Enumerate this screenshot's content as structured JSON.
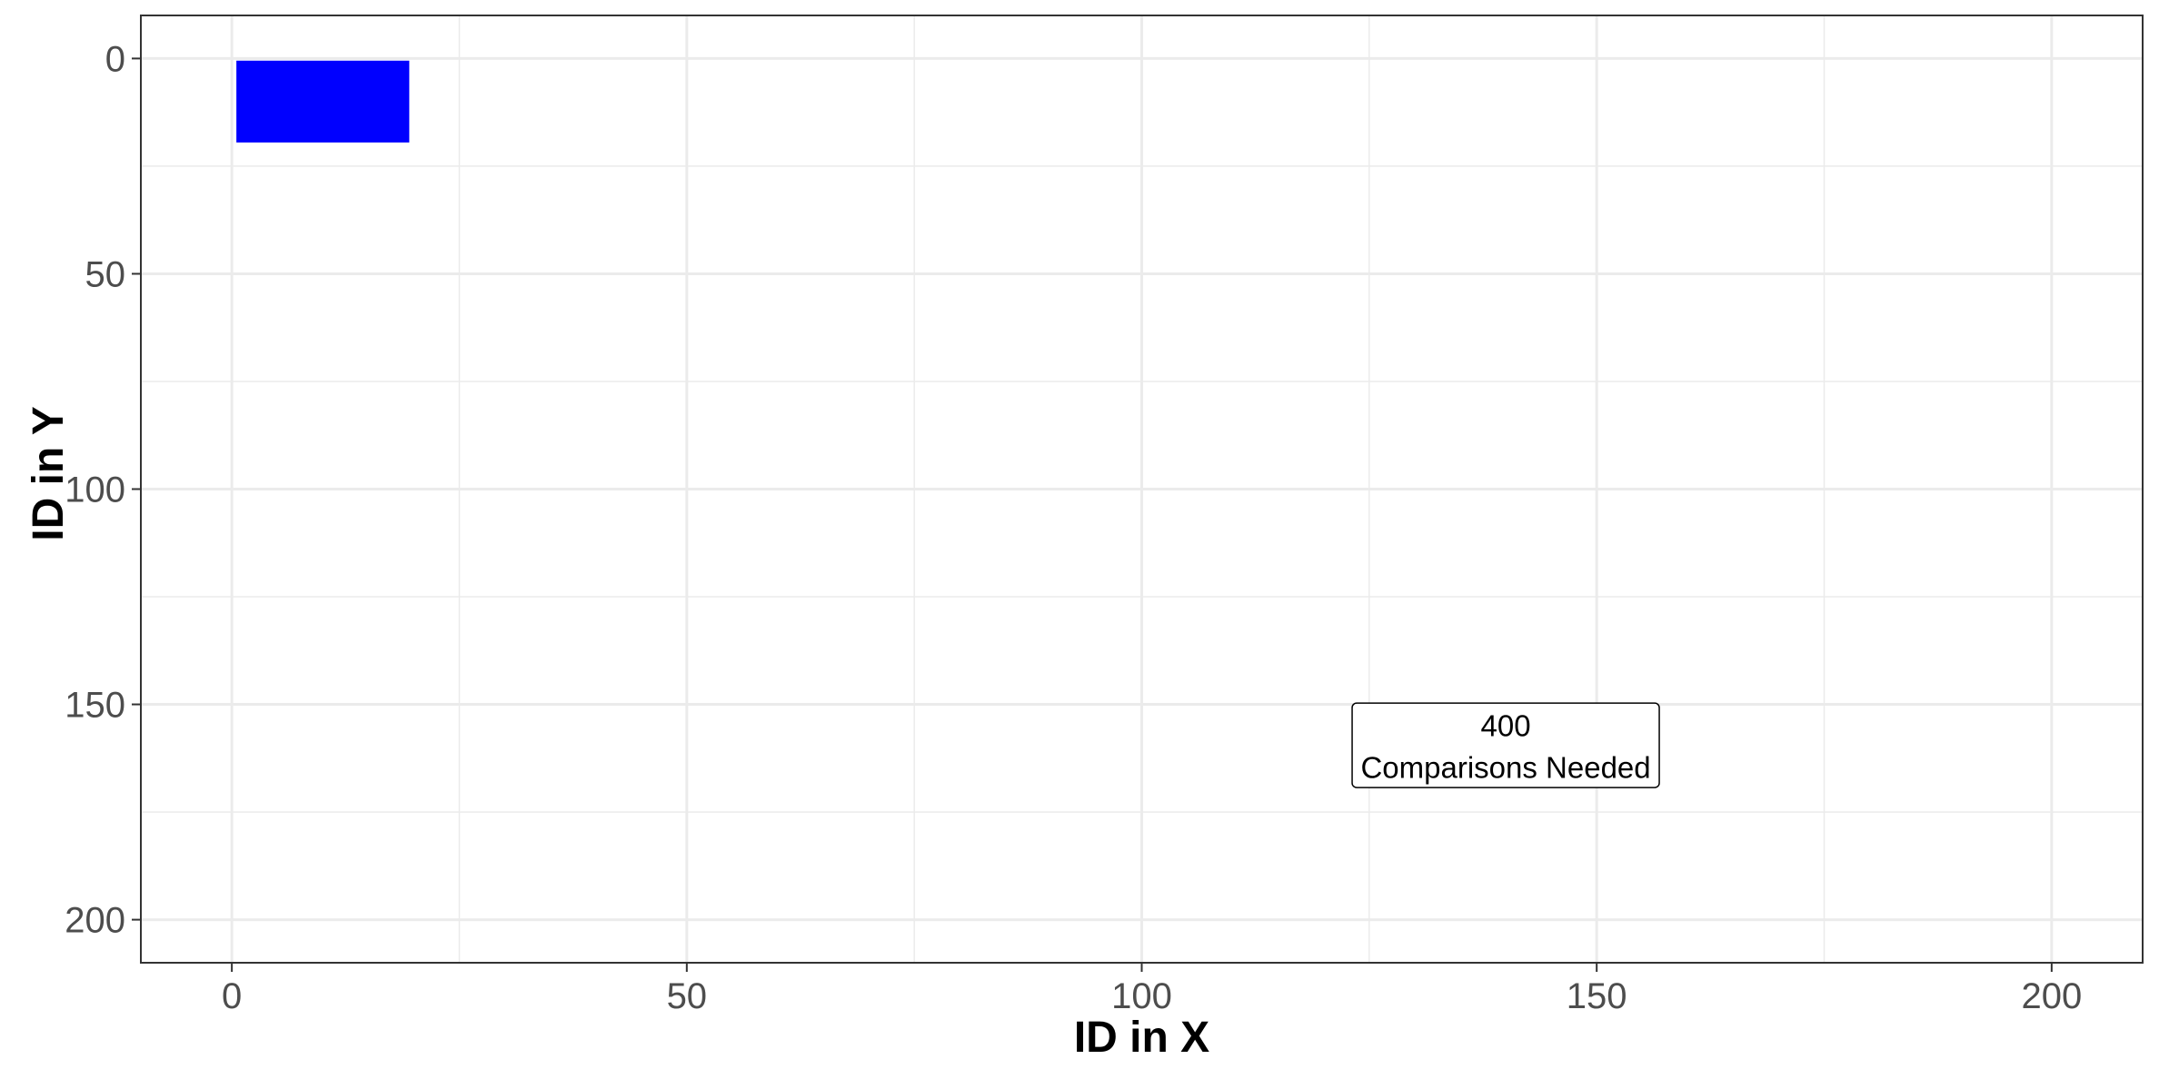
{
  "chart_data": {
    "type": "heatmap",
    "title": "",
    "xlabel": "ID in X",
    "ylabel": "ID in Y",
    "xlim": [
      -10,
      210
    ],
    "ylim": [
      210,
      -10
    ],
    "y_reversed": true,
    "x_ticks": [
      0,
      50,
      100,
      150,
      200
    ],
    "y_ticks": [
      0,
      50,
      100,
      150,
      200
    ],
    "grid": true,
    "legend": "none",
    "fill_color": "#0000ff",
    "tiles": [
      {
        "x_from": 0.5,
        "x_to": 19.5,
        "y_from": 0.5,
        "y_to": 19.5
      }
    ],
    "annotation": {
      "x": 140,
      "y": 159.5,
      "value": "400",
      "label": "Comparisons Needed"
    }
  }
}
